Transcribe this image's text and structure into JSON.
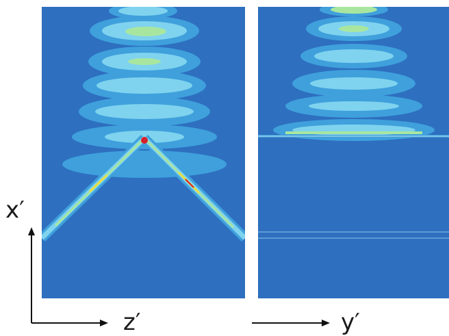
{
  "figure": {
    "axes": {
      "vertical_label": "x′",
      "left_horizontal_label": "z′",
      "right_horizontal_label": "y′"
    },
    "panels": [
      {
        "id": "left",
        "description_colors": [
          "#2e6fbf",
          "#3fa0dc",
          "#7fd3ee",
          "#a8e6a0",
          "#e8e040",
          "#d8202a"
        ]
      },
      {
        "id": "right",
        "description_colors": [
          "#2e6fbf",
          "#3fa0dc",
          "#7fd3ee",
          "#a8e6a0"
        ]
      }
    ],
    "colors": {
      "background_field": "#2e6fbf",
      "low": "#3fa0dc",
      "mid": "#7fd3ee",
      "high": "#a8e6a0",
      "peak": "#d8202a"
    }
  }
}
